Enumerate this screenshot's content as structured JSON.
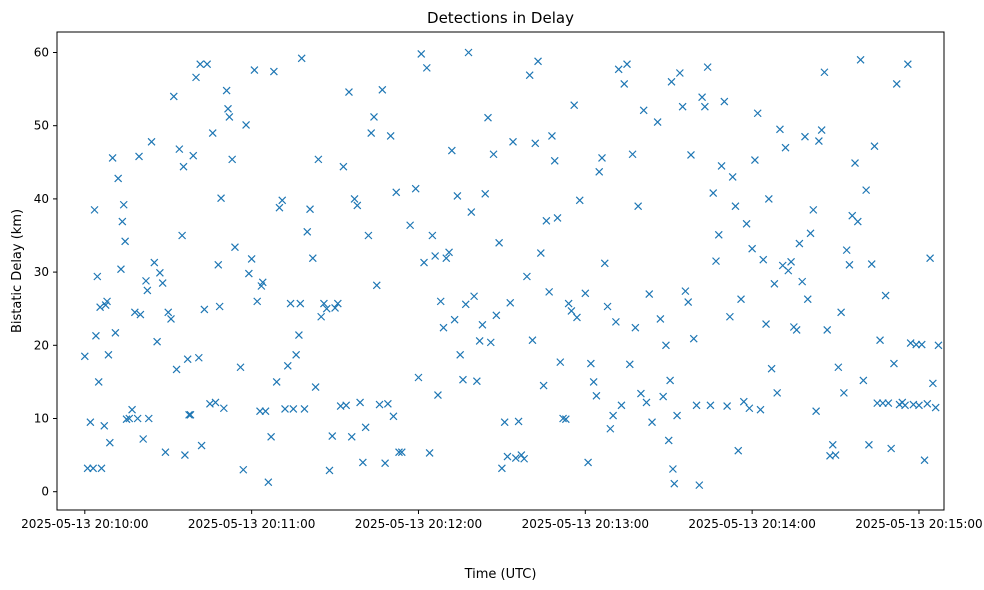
{
  "chart_data": {
    "type": "scatter",
    "title": "Detections in Delay",
    "xlabel": "Time (UTC)",
    "ylabel": "Bistatic Delay (km)",
    "marker": "x",
    "color": "#1f77b4",
    "x_axis": {
      "unit": "seconds after 2025-05-13 20:10:00",
      "min": -10,
      "max": 309,
      "ticks": [
        {
          "value": 0,
          "label": "2025-05-13 20:10:00"
        },
        {
          "value": 60,
          "label": "2025-05-13 20:11:00"
        },
        {
          "value": 120,
          "label": "2025-05-13 20:12:00"
        },
        {
          "value": 180,
          "label": "2025-05-13 20:13:00"
        },
        {
          "value": 240,
          "label": "2025-05-13 20:14:00"
        },
        {
          "value": 300,
          "label": "2025-05-13 20:15:00"
        }
      ]
    },
    "y_axis": {
      "min": -2.5,
      "max": 62.8,
      "ticks": [
        {
          "value": 0,
          "label": "0"
        },
        {
          "value": 10,
          "label": "10"
        },
        {
          "value": 20,
          "label": "20"
        },
        {
          "value": 30,
          "label": "30"
        },
        {
          "value": 40,
          "label": "40"
        },
        {
          "value": 50,
          "label": "50"
        },
        {
          "value": 60,
          "label": "60"
        }
      ]
    },
    "grid": false,
    "legend": "none",
    "points": [
      [
        0,
        18.5
      ],
      [
        1,
        3.2
      ],
      [
        2,
        9.5
      ],
      [
        3,
        3.2
      ],
      [
        3.5,
        38.5
      ],
      [
        4,
        21.3
      ],
      [
        4.5,
        29.4
      ],
      [
        5,
        15
      ],
      [
        5.5,
        25.2
      ],
      [
        6,
        3.2
      ],
      [
        7,
        9
      ],
      [
        7.5,
        25.5
      ],
      [
        8,
        26
      ],
      [
        8.5,
        18.7
      ],
      [
        9,
        6.7
      ],
      [
        10,
        45.6
      ],
      [
        11,
        21.7
      ],
      [
        12,
        42.8
      ],
      [
        13,
        30.4
      ],
      [
        13.5,
        36.9
      ],
      [
        14,
        39.2
      ],
      [
        14.5,
        34.2
      ],
      [
        15,
        9.9
      ],
      [
        16,
        10
      ],
      [
        17,
        11.2
      ],
      [
        18,
        24.5
      ],
      [
        19,
        10
      ],
      [
        19.5,
        45.8
      ],
      [
        20,
        24.2
      ],
      [
        21,
        7.2
      ],
      [
        22,
        28.8
      ],
      [
        22.5,
        27.5
      ],
      [
        23,
        10
      ],
      [
        24,
        47.8
      ],
      [
        25,
        31.3
      ],
      [
        26,
        20.5
      ],
      [
        27,
        29.9
      ],
      [
        28,
        28.5
      ],
      [
        29,
        5.4
      ],
      [
        30,
        24.5
      ],
      [
        31,
        23.6
      ],
      [
        32,
        54
      ],
      [
        33,
        16.7
      ],
      [
        34,
        46.8
      ],
      [
        35,
        35
      ],
      [
        35.5,
        44.4
      ],
      [
        36,
        5
      ],
      [
        37,
        18.1
      ],
      [
        37.5,
        10.5
      ],
      [
        38,
        10.5
      ],
      [
        39,
        45.9
      ],
      [
        40,
        56.6
      ],
      [
        41,
        18.3
      ],
      [
        41.5,
        58.4
      ],
      [
        42,
        6.3
      ],
      [
        43,
        24.9
      ],
      [
        44,
        58.4
      ],
      [
        45,
        12
      ],
      [
        46,
        49
      ],
      [
        47,
        12.2
      ],
      [
        48,
        31
      ],
      [
        48.5,
        25.3
      ],
      [
        49,
        40.1
      ],
      [
        50,
        11.4
      ],
      [
        51,
        54.8
      ],
      [
        51.5,
        52.3
      ],
      [
        52,
        51.2
      ],
      [
        53,
        45.4
      ],
      [
        54,
        33.4
      ],
      [
        56,
        17
      ],
      [
        57,
        3
      ],
      [
        58,
        50.1
      ],
      [
        59,
        29.8
      ],
      [
        60,
        31.8
      ],
      [
        61,
        57.6
      ],
      [
        62,
        26
      ],
      [
        63,
        11
      ],
      [
        63.5,
        28.1
      ],
      [
        64,
        28.6
      ],
      [
        65,
        11
      ],
      [
        66,
        1.3
      ],
      [
        67,
        7.5
      ],
      [
        68,
        57.4
      ],
      [
        69,
        15
      ],
      [
        70,
        38.8
      ],
      [
        71,
        39.8
      ],
      [
        72,
        11.3
      ],
      [
        73,
        17.2
      ],
      [
        74,
        25.7
      ],
      [
        75,
        11.3
      ],
      [
        76,
        18.7
      ],
      [
        77,
        21.4
      ],
      [
        77.5,
        25.7
      ],
      [
        78,
        59.2
      ],
      [
        79,
        11.3
      ],
      [
        80,
        35.5
      ],
      [
        81,
        38.6
      ],
      [
        82,
        31.9
      ],
      [
        83,
        14.3
      ],
      [
        84,
        45.4
      ],
      [
        85,
        23.9
      ],
      [
        86,
        25.7
      ],
      [
        87,
        25
      ],
      [
        88,
        2.9
      ],
      [
        89,
        7.6
      ],
      [
        90,
        25.1
      ],
      [
        91,
        25.7
      ],
      [
        92,
        11.7
      ],
      [
        93,
        44.4
      ],
      [
        94,
        11.8
      ],
      [
        95,
        54.6
      ],
      [
        96,
        7.5
      ],
      [
        97,
        40
      ],
      [
        98,
        39.1
      ],
      [
        99,
        12.2
      ],
      [
        100,
        4
      ],
      [
        101,
        8.8
      ],
      [
        102,
        35
      ],
      [
        103,
        49
      ],
      [
        104,
        51.2
      ],
      [
        105,
        28.2
      ],
      [
        106,
        11.9
      ],
      [
        107,
        54.9
      ],
      [
        108,
        3.9
      ],
      [
        109,
        12
      ],
      [
        110,
        48.6
      ],
      [
        111,
        10.3
      ],
      [
        112,
        40.9
      ],
      [
        113,
        5.4
      ],
      [
        114,
        5.4
      ],
      [
        117,
        36.4
      ],
      [
        119,
        41.4
      ],
      [
        120,
        15.6
      ],
      [
        121,
        59.8
      ],
      [
        122,
        31.3
      ],
      [
        123,
        57.9
      ],
      [
        124,
        5.3
      ],
      [
        125,
        35
      ],
      [
        126,
        32.2
      ],
      [
        127,
        13.2
      ],
      [
        128,
        26
      ],
      [
        129,
        22.4
      ],
      [
        130,
        31.9
      ],
      [
        131,
        32.7
      ],
      [
        132,
        46.6
      ],
      [
        133,
        23.5
      ],
      [
        134,
        40.4
      ],
      [
        135,
        18.7
      ],
      [
        136,
        15.3
      ],
      [
        137,
        25.6
      ],
      [
        138,
        60
      ],
      [
        139,
        38.2
      ],
      [
        140,
        26.7
      ],
      [
        141,
        15.1
      ],
      [
        142,
        20.6
      ],
      [
        143,
        22.8
      ],
      [
        144,
        40.7
      ],
      [
        145,
        51.1
      ],
      [
        146,
        20.4
      ],
      [
        147,
        46.1
      ],
      [
        148,
        24.1
      ],
      [
        149,
        34
      ],
      [
        150,
        3.2
      ],
      [
        151,
        9.5
      ],
      [
        152,
        4.8
      ],
      [
        153,
        25.8
      ],
      [
        154,
        47.8
      ],
      [
        155,
        4.6
      ],
      [
        156,
        9.6
      ],
      [
        157,
        5
      ],
      [
        158,
        4.5
      ],
      [
        159,
        29.4
      ],
      [
        160,
        56.9
      ],
      [
        161,
        20.7
      ],
      [
        162,
        47.6
      ],
      [
        163,
        58.8
      ],
      [
        164,
        32.6
      ],
      [
        165,
        14.5
      ],
      [
        166,
        37
      ],
      [
        167,
        27.3
      ],
      [
        168,
        48.6
      ],
      [
        169,
        45.2
      ],
      [
        170,
        37.4
      ],
      [
        171,
        17.7
      ],
      [
        172,
        10
      ],
      [
        173,
        9.9
      ],
      [
        174,
        25.7
      ],
      [
        175,
        24.7
      ],
      [
        176,
        52.8
      ],
      [
        177,
        23.8
      ],
      [
        178,
        39.8
      ],
      [
        180,
        27.1
      ],
      [
        181,
        4
      ],
      [
        182,
        17.5
      ],
      [
        183,
        15
      ],
      [
        184,
        13.1
      ],
      [
        185,
        43.7
      ],
      [
        186,
        45.6
      ],
      [
        187,
        31.2
      ],
      [
        188,
        25.3
      ],
      [
        189,
        8.6
      ],
      [
        190,
        10.4
      ],
      [
        191,
        23.2
      ],
      [
        192,
        57.7
      ],
      [
        193,
        11.8
      ],
      [
        194,
        55.7
      ],
      [
        195,
        58.4
      ],
      [
        196,
        17.4
      ],
      [
        197,
        46.1
      ],
      [
        198,
        22.4
      ],
      [
        199,
        39
      ],
      [
        200,
        13.4
      ],
      [
        201,
        52.1
      ],
      [
        202,
        12.2
      ],
      [
        203,
        27
      ],
      [
        204,
        9.5
      ],
      [
        206,
        50.5
      ],
      [
        207,
        23.6
      ],
      [
        208,
        13
      ],
      [
        209,
        20
      ],
      [
        210,
        7
      ],
      [
        210.5,
        15.2
      ],
      [
        211,
        56
      ],
      [
        211.5,
        3.1
      ],
      [
        212,
        1.1
      ],
      [
        213,
        10.4
      ],
      [
        214,
        57.2
      ],
      [
        215,
        52.6
      ],
      [
        216,
        27.4
      ],
      [
        217,
        25.9
      ],
      [
        218,
        46
      ],
      [
        219,
        20.9
      ],
      [
        220,
        11.8
      ],
      [
        221,
        0.9
      ],
      [
        222,
        53.9
      ],
      [
        223,
        52.6
      ],
      [
        224,
        58
      ],
      [
        225,
        11.8
      ],
      [
        226,
        40.8
      ],
      [
        227,
        31.5
      ],
      [
        228,
        35.1
      ],
      [
        229,
        44.5
      ],
      [
        230,
        53.3
      ],
      [
        231,
        11.7
      ],
      [
        232,
        23.9
      ],
      [
        233,
        43
      ],
      [
        234,
        39
      ],
      [
        235,
        5.6
      ],
      [
        236,
        26.3
      ],
      [
        237,
        12.3
      ],
      [
        238,
        36.6
      ],
      [
        239,
        11.4
      ],
      [
        240,
        33.2
      ],
      [
        241,
        45.3
      ],
      [
        242,
        51.7
      ],
      [
        243,
        11.2
      ],
      [
        244,
        31.7
      ],
      [
        245,
        22.9
      ],
      [
        246,
        40
      ],
      [
        247,
        16.8
      ],
      [
        248,
        28.4
      ],
      [
        249,
        13.5
      ],
      [
        250,
        49.5
      ],
      [
        251,
        30.9
      ],
      [
        252,
        47
      ],
      [
        253,
        30.2
      ],
      [
        254,
        31.4
      ],
      [
        255,
        22.5
      ],
      [
        256,
        22.1
      ],
      [
        257,
        33.9
      ],
      [
        258,
        28.7
      ],
      [
        259,
        48.5
      ],
      [
        260,
        26.3
      ],
      [
        261,
        35.3
      ],
      [
        262,
        38.5
      ],
      [
        263,
        11
      ],
      [
        264,
        47.9
      ],
      [
        265,
        49.4
      ],
      [
        266,
        57.3
      ],
      [
        267,
        22.1
      ],
      [
        268,
        4.9
      ],
      [
        269,
        6.4
      ],
      [
        270,
        5
      ],
      [
        271,
        17
      ],
      [
        272,
        24.5
      ],
      [
        273,
        13.5
      ],
      [
        274,
        33
      ],
      [
        275,
        31
      ],
      [
        276,
        37.7
      ],
      [
        277,
        44.9
      ],
      [
        278,
        36.9
      ],
      [
        279,
        59
      ],
      [
        280,
        15.2
      ],
      [
        281,
        41.2
      ],
      [
        282,
        6.4
      ],
      [
        283,
        31.1
      ],
      [
        284,
        47.2
      ],
      [
        285,
        12.1
      ],
      [
        286,
        20.7
      ],
      [
        287,
        12.1
      ],
      [
        288,
        26.8
      ],
      [
        289,
        12.1
      ],
      [
        290,
        5.9
      ],
      [
        291,
        17.5
      ],
      [
        292,
        55.7
      ],
      [
        293,
        11.9
      ],
      [
        294,
        12.2
      ],
      [
        295,
        11.8
      ],
      [
        296,
        58.4
      ],
      [
        297,
        20.3
      ],
      [
        298,
        11.9
      ],
      [
        299,
        20.1
      ],
      [
        300,
        11.8
      ],
      [
        301,
        20.1
      ],
      [
        302,
        4.3
      ],
      [
        303,
        12
      ],
      [
        304,
        31.9
      ],
      [
        305,
        14.8
      ],
      [
        306,
        11.5
      ],
      [
        307,
        20
      ]
    ]
  }
}
